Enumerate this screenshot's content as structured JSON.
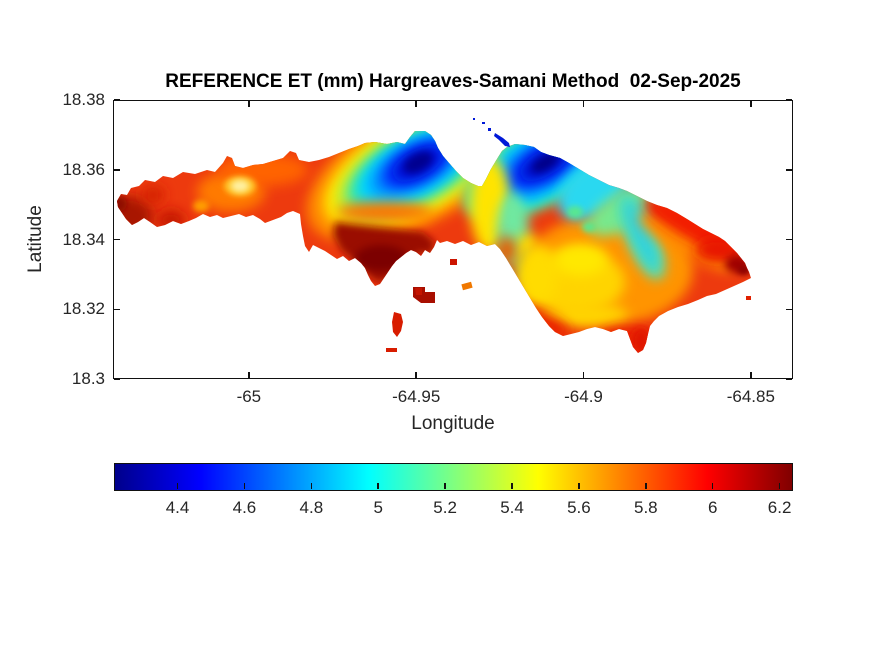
{
  "figure": {
    "background": "#ffffff",
    "text_color": "#262626",
    "axis_color": "#111111"
  },
  "chart_data": {
    "type": "heatmap",
    "subtype": "filled-contour-map",
    "title": "REFERENCE ET (mm) Hargreaves-Samani Method  02-Sep-2025",
    "variable": "Reference ET",
    "units": "mm",
    "method": "Hargreaves-Samani",
    "date": "02-Sep-2025",
    "xlabel": "Longitude",
    "ylabel": "Latitude",
    "xlim": [
      -65.0406,
      -64.8374
    ],
    "ylim": [
      18.3,
      18.38
    ],
    "xticks": [
      -65,
      -64.95,
      -64.9,
      -64.85
    ],
    "xtick_labels": [
      "-65",
      "-64.95",
      "-64.9",
      "-64.85"
    ],
    "yticks": [
      18.3,
      18.32,
      18.34,
      18.36,
      18.38
    ],
    "ytick_labels": [
      "18.3",
      "18.32",
      "18.34",
      "18.36",
      "18.38"
    ],
    "grid": false,
    "colormap": "jet",
    "colorbar": {
      "orientation": "horizontal",
      "min": 4.21,
      "max": 6.24,
      "ticks": [
        4.4,
        4.6,
        4.8,
        5,
        5.2,
        5.4,
        5.6,
        5.8,
        6,
        6.2
      ],
      "tick_labels": [
        "4.4",
        "4.6",
        "4.8",
        "5",
        "5.2",
        "5.4",
        "5.6",
        "5.8",
        "6",
        "6.2"
      ],
      "gradient_stops": [
        {
          "pos": 0,
          "color": "#00008b"
        },
        {
          "pos": 12.5,
          "color": "#0000ff"
        },
        {
          "pos": 37.5,
          "color": "#00ffff"
        },
        {
          "pos": 62.5,
          "color": "#ffff00"
        },
        {
          "pos": 87.5,
          "color": "#ff0000"
        },
        {
          "pos": 100,
          "color": "#800000"
        }
      ]
    },
    "regions": [
      {
        "area": "west peninsula",
        "approx_et_mm": [
          5.8,
          6.1
        ]
      },
      {
        "area": "west tip",
        "approx_et_mm": 6.2
      },
      {
        "area": "pale spot mid west peninsula (~-64.97, 18.355)",
        "approx_et_mm": 5.4
      },
      {
        "area": "north-central basin minimum (~-64.953, 18.358)",
        "approx_et_mm": 4.3
      },
      {
        "area": "northeast basin minimum (~-64.912, 18.357)",
        "approx_et_mm": 4.4
      },
      {
        "area": "south-central coast maximum (~-64.96, 18.335)",
        "approx_et_mm": 6.2
      },
      {
        "area": "central isthmus band (~-64.92)",
        "approx_et_mm": 5.4
      },
      {
        "area": "east-lobe interior",
        "approx_et_mm": [
          5.5,
          5.9
        ]
      },
      {
        "area": "southeast diagonal band",
        "approx_et_mm": 5.0
      },
      {
        "area": "northeast coastal band",
        "approx_et_mm": 6.0
      },
      {
        "area": "east tip (~-64.852, 18.33)",
        "approx_et_mm": 6.2
      }
    ],
    "offshore_features": [
      {
        "name": "harbor islands south of center",
        "approx_et_mm": 6.1
      },
      {
        "name": "islet chain north of central bay",
        "approx_et_mm": 4.3
      }
    ]
  }
}
